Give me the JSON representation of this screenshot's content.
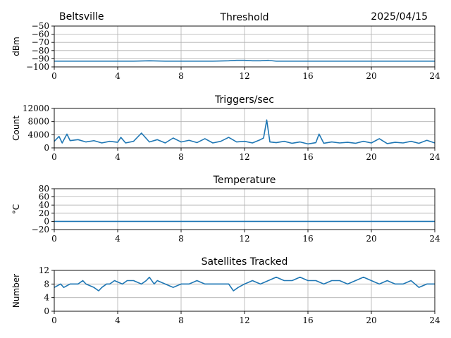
{
  "header": {
    "site": "Beltsville",
    "date": "2025/04/15"
  },
  "colors": {
    "series": "#1f77b4",
    "grid": "#b0b0b0",
    "axis": "#000000"
  },
  "chart_data": [
    {
      "type": "line",
      "title": "Threshold",
      "ylabel": "dBm",
      "xlabel": "",
      "xlim": [
        0,
        24
      ],
      "ylim": [
        -100,
        -50
      ],
      "xticks": [
        0,
        4,
        8,
        12,
        16,
        20,
        24
      ],
      "yticks": [
        -100,
        -90,
        -80,
        -70,
        -60,
        -50
      ],
      "ytick_labels": [
        "−100",
        "−90",
        "−80",
        "−70",
        "−60",
        "−50"
      ],
      "grid": true,
      "series": [
        {
          "x": [
            0,
            2,
            4,
            5,
            6,
            7,
            8,
            9,
            10,
            11,
            11.5,
            12,
            12.5,
            13,
            13.5,
            14,
            15,
            16,
            17,
            18,
            20,
            22,
            24
          ],
          "y": [
            -93,
            -93,
            -93,
            -93,
            -92.5,
            -93,
            -93,
            -93,
            -93,
            -92.5,
            -92,
            -92,
            -92.5,
            -92.5,
            -92,
            -93,
            -93,
            -93,
            -93,
            -93,
            -93,
            -93,
            -93
          ]
        }
      ]
    },
    {
      "type": "line",
      "title": "Triggers/sec",
      "ylabel": "Count",
      "xlabel": "",
      "xlim": [
        0,
        24
      ],
      "ylim": [
        0,
        12000
      ],
      "xticks": [
        0,
        4,
        8,
        12,
        16,
        20,
        24
      ],
      "yticks": [
        0,
        4000,
        8000,
        12000
      ],
      "ytick_labels": [
        "0",
        "4000",
        "8000",
        "12000"
      ],
      "grid": true,
      "series": [
        {
          "x": [
            0,
            0.3,
            0.5,
            0.8,
            1,
            1.5,
            2,
            2.5,
            3,
            3.5,
            4,
            4.2,
            4.5,
            5,
            5.5,
            6,
            6.5,
            7,
            7.5,
            8,
            8.5,
            9,
            9.5,
            10,
            10.5,
            11,
            11.5,
            12,
            12.5,
            13,
            13.2,
            13.4,
            13.6,
            14,
            14.5,
            15,
            15.5,
            16,
            16.5,
            16.7,
            17,
            17.5,
            18,
            18.5,
            19,
            19.5,
            20,
            20.5,
            21,
            21.5,
            22,
            22.5,
            23,
            23.5,
            24
          ],
          "y": [
            2000,
            3500,
            1500,
            4200,
            2200,
            2500,
            1800,
            2200,
            1500,
            2000,
            1700,
            3200,
            1500,
            2000,
            4500,
            1800,
            2500,
            1500,
            3000,
            1800,
            2300,
            1600,
            2800,
            1500,
            2000,
            3200,
            1800,
            2000,
            1500,
            2500,
            3000,
            8500,
            1800,
            1600,
            2000,
            1400,
            1800,
            1200,
            1600,
            4200,
            1400,
            1800,
            1500,
            1700,
            1400,
            2000,
            1500,
            2800,
            1300,
            1700,
            1500,
            2000,
            1400,
            2300,
            1500
          ]
        }
      ]
    },
    {
      "type": "line",
      "title": "Temperature",
      "ylabel": "°C",
      "xlabel": "",
      "xlim": [
        0,
        24
      ],
      "ylim": [
        -20,
        80
      ],
      "xticks": [
        0,
        4,
        8,
        12,
        16,
        20,
        24
      ],
      "yticks": [
        -20,
        0,
        20,
        40,
        60,
        80
      ],
      "ytick_labels": [
        "−20",
        "0",
        "20",
        "40",
        "60",
        "80"
      ],
      "grid": true,
      "series": [
        {
          "x": [
            0,
            24
          ],
          "y": [
            0,
            0
          ]
        }
      ]
    },
    {
      "type": "line",
      "title": "Satellites Tracked",
      "ylabel": "Number",
      "xlabel": "",
      "xlim": [
        0,
        24
      ],
      "ylim": [
        0,
        12
      ],
      "xticks": [
        0,
        4,
        8,
        12,
        16,
        20,
        24
      ],
      "yticks": [
        0,
        4,
        8,
        12
      ],
      "ytick_labels": [
        "0",
        "4",
        "8",
        "12"
      ],
      "grid": true,
      "series": [
        {
          "x": [
            0,
            0.4,
            0.6,
            1,
            1.5,
            1.8,
            2,
            2.5,
            2.8,
            3,
            3.3,
            3.5,
            3.8,
            4.3,
            4.6,
            5,
            5.5,
            5.8,
            6,
            6.3,
            6.5,
            7,
            7.5,
            8,
            8.5,
            9,
            9.5,
            10,
            10.5,
            11,
            11.3,
            11.6,
            12,
            12.5,
            13,
            13.5,
            14,
            14.5,
            15,
            15.5,
            16,
            16.5,
            17,
            17.5,
            18,
            18.5,
            19,
            19.5,
            20,
            20.5,
            21,
            21.5,
            22,
            22.5,
            23,
            23.5,
            24
          ],
          "y": [
            7,
            8,
            7,
            8,
            8,
            9,
            8,
            7,
            6,
            7,
            8,
            8,
            9,
            8,
            9,
            9,
            8,
            9,
            10,
            8,
            9,
            8,
            7,
            8,
            8,
            9,
            8,
            8,
            8,
            8,
            6,
            7,
            8,
            9,
            8,
            9,
            10,
            9,
            9,
            10,
            9,
            9,
            8,
            9,
            9,
            8,
            9,
            10,
            9,
            8,
            9,
            8,
            8,
            9,
            7,
            8,
            8
          ]
        }
      ]
    }
  ]
}
